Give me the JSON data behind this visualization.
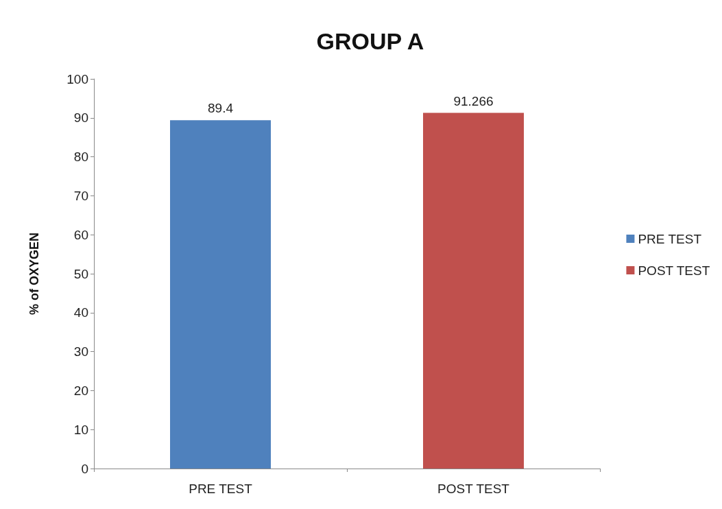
{
  "chart_data": {
    "type": "bar",
    "title": "GROUP A",
    "ylabel": "% of OXYGEN",
    "categories": [
      "PRE TEST",
      "POST TEST"
    ],
    "series": [
      {
        "name": "PRE TEST",
        "color": "#4f81bd",
        "values": [
          89.4,
          null
        ]
      },
      {
        "name": "POST TEST",
        "color": "#c0504d",
        "values": [
          null,
          91.266
        ]
      }
    ],
    "ylim": [
      0,
      100
    ],
    "yticks": [
      0,
      10,
      20,
      30,
      40,
      50,
      60,
      70,
      80,
      90,
      100
    ],
    "grid": false,
    "legend": "right",
    "data_labels": true
  }
}
